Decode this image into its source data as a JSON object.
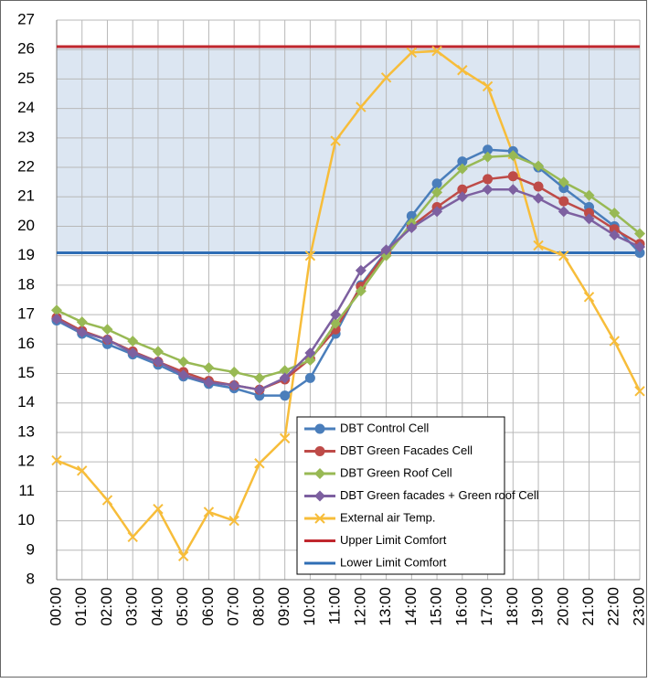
{
  "chart_data": {
    "type": "line",
    "categories": [
      "00:00",
      "01:00",
      "02:00",
      "03:00",
      "04:00",
      "05:00",
      "06:00",
      "07:00",
      "08:00",
      "09:00",
      "10:00",
      "11:00",
      "12:00",
      "13:00",
      "14:00",
      "15:00",
      "16:00",
      "17:00",
      "18:00",
      "19:00",
      "20:00",
      "21:00",
      "22:00",
      "23:00"
    ],
    "ylim": [
      8,
      27
    ],
    "yticks": [
      8,
      9,
      10,
      11,
      12,
      13,
      14,
      15,
      16,
      17,
      18,
      19,
      20,
      21,
      22,
      23,
      24,
      25,
      26,
      27
    ],
    "grid": true,
    "band_color": "#dce6f2",
    "series": [
      {
        "name": "DBT Control Cell",
        "color": "#4a7ebb",
        "marker": "circle",
        "values": [
          16.8,
          16.35,
          16.0,
          15.65,
          15.3,
          14.9,
          14.65,
          14.5,
          14.25,
          14.25,
          14.85,
          16.35,
          18.0,
          19.15,
          20.35,
          21.45,
          22.2,
          22.6,
          22.55,
          22.0,
          21.3,
          20.65,
          20.0,
          19.1
        ]
      },
      {
        "name": "DBT Green Facades Cell",
        "color": "#be4b48",
        "marker": "circle",
        "values": [
          16.9,
          16.45,
          16.15,
          15.75,
          15.4,
          15.05,
          14.75,
          14.6,
          14.45,
          14.8,
          15.5,
          16.5,
          17.95,
          19.1,
          20.0,
          20.65,
          21.25,
          21.6,
          21.7,
          21.35,
          20.85,
          20.45,
          19.9,
          19.4
        ]
      },
      {
        "name": "DBT Green Roof Cell",
        "color": "#98b954",
        "marker": "diamond",
        "values": [
          17.15,
          16.75,
          16.5,
          16.1,
          15.75,
          15.4,
          15.2,
          15.05,
          14.85,
          15.1,
          15.45,
          16.7,
          17.8,
          19.0,
          20.1,
          21.15,
          21.95,
          22.35,
          22.4,
          22.05,
          21.5,
          21.05,
          20.45,
          19.75
        ]
      },
      {
        "name": "DBT Green facades + Green roof Cell",
        "color": "#7d60a0",
        "marker": "diamond",
        "values": [
          16.85,
          16.4,
          16.15,
          15.7,
          15.4,
          14.95,
          14.7,
          14.6,
          14.45,
          14.85,
          15.7,
          17.0,
          18.5,
          19.2,
          19.95,
          20.5,
          21.0,
          21.25,
          21.25,
          20.95,
          20.5,
          20.25,
          19.7,
          19.3
        ]
      },
      {
        "name": "External air Temp.",
        "color": "#f7bd3a",
        "marker": "x",
        "values": [
          12.05,
          11.7,
          10.7,
          9.45,
          10.4,
          8.8,
          10.3,
          10.0,
          11.95,
          12.8,
          19.0,
          22.9,
          24.05,
          25.05,
          25.9,
          25.95,
          25.3,
          24.75,
          22.45,
          19.35,
          19.0,
          17.6,
          16.1,
          14.4
        ]
      },
      {
        "name": "Upper Limit Comfort",
        "color": "#c0272d",
        "marker": "none",
        "values": [
          26.1,
          26.1,
          26.1,
          26.1,
          26.1,
          26.1,
          26.1,
          26.1,
          26.1,
          26.1,
          26.1,
          26.1,
          26.1,
          26.1,
          26.1,
          26.1,
          26.1,
          26.1,
          26.1,
          26.1,
          26.1,
          26.1,
          26.1,
          26.1
        ]
      },
      {
        "name": "Lower Limit Comfort",
        "color": "#2f6eb5",
        "marker": "none",
        "values": [
          19.1,
          19.1,
          19.1,
          19.1,
          19.1,
          19.1,
          19.1,
          19.1,
          19.1,
          19.1,
          19.1,
          19.1,
          19.1,
          19.1,
          19.1,
          19.1,
          19.1,
          19.1,
          19.1,
          19.1,
          19.1,
          19.1,
          19.1,
          19.1
        ]
      }
    ]
  }
}
